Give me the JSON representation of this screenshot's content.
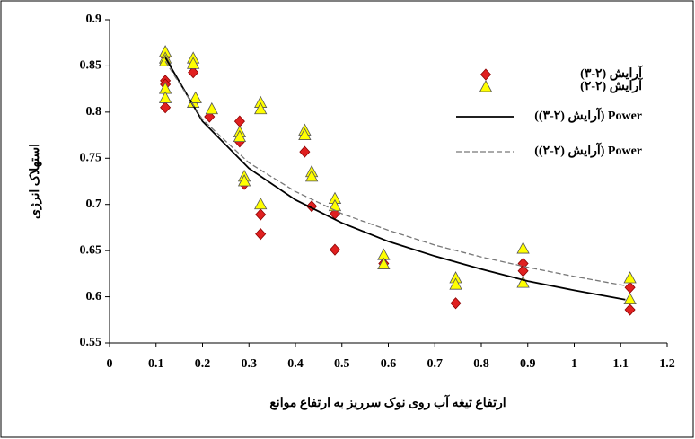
{
  "chart_data": {
    "type": "scatter",
    "x_label": "ارتفاع تیغه آب روی نوک سرریز به ارتفاع موانع",
    "y_label": "استهلاک انرژی",
    "xlim": [
      0,
      1.2
    ],
    "xticks": [
      0,
      0.1,
      0.2,
      0.3,
      0.4,
      0.5,
      0.6,
      0.7,
      0.8,
      0.9,
      1,
      1.1,
      1.2
    ],
    "ylim": [
      0.55,
      0.9
    ],
    "yticks": [
      0.55,
      0.6,
      0.65,
      0.7,
      0.75,
      0.8,
      0.85,
      0.9
    ],
    "grid": false,
    "legend": "top-right",
    "series": [
      {
        "name": "آرایش (۲-۳)",
        "type": "scatter",
        "marker": "diamond",
        "color": "#e02020",
        "x": [
          0.12,
          0.12,
          0.12,
          0.12,
          0.18,
          0.18,
          0.215,
          0.28,
          0.28,
          0.29,
          0.325,
          0.325,
          0.42,
          0.435,
          0.485,
          0.485,
          0.59,
          0.745,
          0.89,
          0.89,
          1.12,
          1.12
        ],
        "values": [
          0.86,
          0.834,
          0.83,
          0.805,
          0.85,
          0.843,
          0.795,
          0.79,
          0.768,
          0.722,
          0.689,
          0.668,
          0.757,
          0.698,
          0.69,
          0.651,
          0.636,
          0.593,
          0.636,
          0.628,
          0.61,
          0.586
        ]
      },
      {
        "name": "آرایش (۲-۲)",
        "type": "scatter",
        "marker": "triangle",
        "color": "#ffff00",
        "x": [
          0.12,
          0.12,
          0.12,
          0.12,
          0.12,
          0.18,
          0.18,
          0.18,
          0.185,
          0.22,
          0.28,
          0.28,
          0.29,
          0.29,
          0.325,
          0.325,
          0.325,
          0.42,
          0.42,
          0.435,
          0.435,
          0.485,
          0.485,
          0.59,
          0.59,
          0.745,
          0.745,
          0.89,
          0.89,
          1.12,
          1.12
        ],
        "values": [
          0.865,
          0.858,
          0.855,
          0.825,
          0.815,
          0.858,
          0.852,
          0.81,
          0.815,
          0.803,
          0.778,
          0.773,
          0.73,
          0.725,
          0.81,
          0.803,
          0.7,
          0.78,
          0.775,
          0.735,
          0.73,
          0.706,
          0.698,
          0.645,
          0.635,
          0.62,
          0.613,
          0.652,
          0.615,
          0.62,
          0.597
        ]
      },
      {
        "name": "Power (آرایش (۲-۳))",
        "type": "line",
        "dash": false,
        "color": "#000000",
        "x": [
          0.12,
          0.2,
          0.3,
          0.4,
          0.5,
          0.6,
          0.7,
          0.8,
          0.9,
          1.0,
          1.11
        ],
        "values": [
          0.859,
          0.79,
          0.739,
          0.705,
          0.68,
          0.66,
          0.644,
          0.63,
          0.617,
          0.607,
          0.597
        ]
      },
      {
        "name": "Power (آرایش (۲-۲))",
        "type": "line",
        "dash": true,
        "color": "#777777",
        "x": [
          0.12,
          0.2,
          0.3,
          0.4,
          0.5,
          0.6,
          0.7,
          0.8,
          0.9,
          1.0,
          1.11
        ],
        "values": [
          0.855,
          0.792,
          0.745,
          0.714,
          0.69,
          0.672,
          0.656,
          0.643,
          0.632,
          0.622,
          0.612
        ]
      }
    ]
  }
}
